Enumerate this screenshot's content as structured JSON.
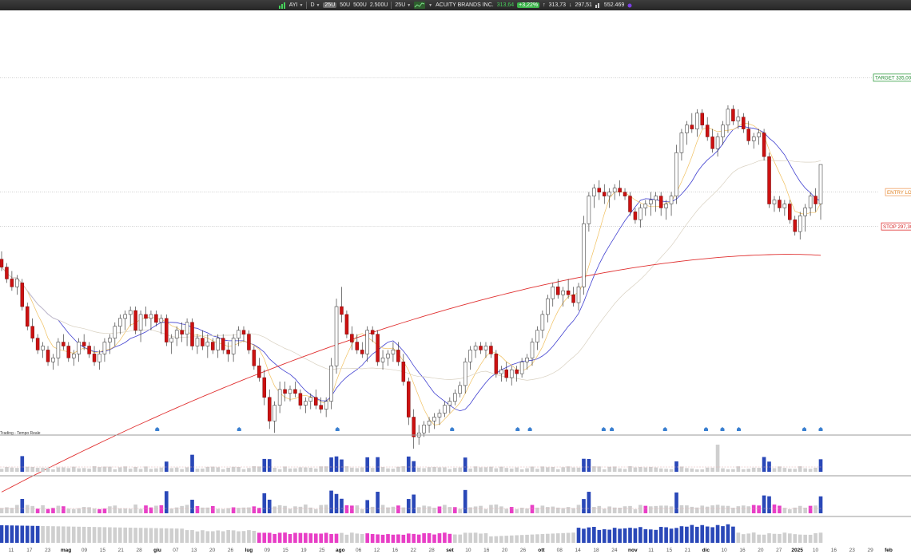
{
  "toolbar": {
    "ticker": "AYI",
    "interval": "D",
    "zoom_options": [
      "25U",
      "50U",
      "500U",
      "2.500U"
    ],
    "zoom_selected": "25U",
    "zoom_box": "25U",
    "company": "ACUITY BRANDS INC.",
    "last_price": "313,64",
    "change_pct": "+3,22%",
    "high": "313,73",
    "low": "297,51",
    "volume": "552.469",
    "icons": [
      "bars-icon",
      "chevron-down-icon",
      "sparkline-icon",
      "arrow-up-icon",
      "arrow-down-icon"
    ]
  },
  "chart_data": {
    "type": "candlestick",
    "price_range": [
      258,
      348
    ],
    "levels": [
      {
        "label": "TARGET 335,00",
        "value": 335.0,
        "color": "#1f8a2f",
        "border": "#2d9b3d"
      },
      {
        "label": "ENTRY LONG",
        "value": 306.0,
        "color": "#e08020",
        "border": "#f0a060"
      },
      {
        "label": "STOP 297,30",
        "value": 297.3,
        "color": "#d42020",
        "border": "#e03030"
      }
    ],
    "note": "Trading - Tempo Reale",
    "moving_averages": [
      {
        "name": "MA short",
        "color": "#4040d0"
      },
      {
        "name": "MA fast",
        "color": "#f0c060"
      },
      {
        "name": "MA medium",
        "color": "#d8d0c0"
      },
      {
        "name": "MA long",
        "color": "#e03030"
      }
    ],
    "colors": {
      "bull": "#ffffff",
      "bear": "#cc1111",
      "vol_blue": "#2a48b8",
      "vol_gray": "#cfcfcf",
      "vol_pink": "#e83ec6"
    },
    "x_ticks": [
      "11",
      "17",
      "23",
      "mag",
      "09",
      "15",
      "21",
      "28",
      "giu",
      "07",
      "13",
      "20",
      "26",
      "lug",
      "09",
      "15",
      "19",
      "25",
      "ago",
      "06",
      "12",
      "16",
      "22",
      "28",
      "set",
      "10",
      "16",
      "20",
      "26",
      "ott",
      "08",
      "14",
      "18",
      "24",
      "nov",
      "11",
      "15",
      "21",
      "dic",
      "10",
      "16",
      "20",
      "27",
      "2025",
      "10",
      "16",
      "23",
      "29",
      "feb"
    ],
    "bold_ticks": [
      "mag",
      "giu",
      "lug",
      "ago",
      "set",
      "ott",
      "nov",
      "dic",
      "2025",
      "feb"
    ],
    "candles_ohlc": [
      [
        289,
        291,
        286,
        287
      ],
      [
        287,
        288,
        283,
        284
      ],
      [
        284,
        286,
        281,
        282
      ],
      [
        282,
        285,
        280,
        284
      ],
      [
        283,
        284,
        276,
        277
      ],
      [
        277,
        278,
        271,
        272
      ],
      [
        272,
        274,
        268,
        269
      ],
      [
        269,
        270,
        265,
        266
      ],
      [
        266,
        268,
        264,
        267
      ],
      [
        266,
        267,
        262,
        263
      ],
      [
        263,
        265,
        261,
        264
      ],
      [
        264,
        269,
        262,
        268
      ],
      [
        268,
        270,
        266,
        267
      ],
      [
        267,
        268,
        263,
        264
      ],
      [
        264,
        266,
        262,
        265
      ],
      [
        265,
        269,
        263,
        268
      ],
      [
        268,
        270,
        266,
        267
      ],
      [
        267,
        268,
        264,
        265
      ],
      [
        265,
        267,
        262,
        263
      ],
      [
        263,
        266,
        261,
        265
      ],
      [
        265,
        269,
        263,
        268
      ],
      [
        268,
        270,
        265,
        269
      ],
      [
        269,
        273,
        267,
        272
      ],
      [
        272,
        275,
        270,
        274
      ],
      [
        274,
        276,
        271,
        275
      ],
      [
        275,
        277,
        272,
        276
      ],
      [
        276,
        277,
        270,
        271
      ],
      [
        271,
        276,
        268,
        275
      ],
      [
        275,
        277,
        272,
        274
      ],
      [
        274,
        276,
        271,
        275
      ],
      [
        275,
        276,
        272,
        273
      ],
      [
        273,
        275,
        270,
        274
      ],
      [
        274,
        275,
        267,
        268
      ],
      [
        268,
        270,
        265,
        269
      ],
      [
        269,
        272,
        267,
        271
      ],
      [
        271,
        273,
        268,
        270
      ],
      [
        270,
        274,
        267,
        273
      ],
      [
        273,
        274,
        266,
        267
      ],
      [
        267,
        270,
        265,
        269
      ],
      [
        269,
        271,
        266,
        267
      ],
      [
        267,
        270,
        264,
        268
      ],
      [
        268,
        269,
        265,
        266
      ],
      [
        266,
        270,
        264,
        269
      ],
      [
        269,
        270,
        265,
        266
      ],
      [
        266,
        268,
        263,
        265
      ],
      [
        265,
        270,
        263,
        269
      ],
      [
        269,
        272,
        267,
        271
      ],
      [
        271,
        272,
        268,
        270
      ],
      [
        270,
        271,
        265,
        266
      ],
      [
        266,
        267,
        261,
        262
      ],
      [
        262,
        264,
        258,
        259
      ],
      [
        259,
        261,
        252,
        254
      ],
      [
        254,
        256,
        246,
        248
      ],
      [
        248,
        253,
        245,
        252
      ],
      [
        252,
        258,
        250,
        256
      ],
      [
        256,
        258,
        253,
        255
      ],
      [
        255,
        257,
        253,
        256
      ],
      [
        256,
        258,
        254,
        255
      ],
      [
        255,
        256,
        251,
        252
      ],
      [
        252,
        254,
        250,
        253
      ],
      [
        253,
        255,
        251,
        254
      ],
      [
        254,
        256,
        251,
        252
      ],
      [
        252,
        254,
        250,
        251
      ],
      [
        251,
        254,
        249,
        253
      ],
      [
        253,
        264,
        251,
        262
      ],
      [
        262,
        279,
        260,
        277
      ],
      [
        277,
        282,
        273,
        275
      ],
      [
        275,
        276,
        269,
        270
      ],
      [
        270,
        272,
        266,
        268
      ],
      [
        268,
        270,
        265,
        266
      ],
      [
        266,
        268,
        264,
        265
      ],
      [
        265,
        272,
        263,
        271
      ],
      [
        271,
        272,
        268,
        270
      ],
      [
        270,
        271,
        262,
        263
      ],
      [
        263,
        266,
        261,
        264
      ],
      [
        264,
        266,
        262,
        265
      ],
      [
        265,
        268,
        263,
        266
      ],
      [
        266,
        268,
        262,
        263
      ],
      [
        263,
        265,
        257,
        258
      ],
      [
        258,
        259,
        247,
        249
      ],
      [
        249,
        251,
        241,
        244
      ],
      [
        244,
        247,
        242,
        245
      ],
      [
        245,
        248,
        244,
        247
      ],
      [
        247,
        249,
        245,
        248
      ],
      [
        248,
        250,
        246,
        249
      ],
      [
        249,
        251,
        247,
        250
      ],
      [
        250,
        253,
        249,
        252
      ],
      [
        252,
        254,
        250,
        253
      ],
      [
        253,
        256,
        252,
        255
      ],
      [
        255,
        258,
        254,
        257
      ],
      [
        257,
        264,
        255,
        263
      ],
      [
        263,
        267,
        261,
        266
      ],
      [
        266,
        268,
        264,
        267
      ],
      [
        267,
        268,
        265,
        266
      ],
      [
        266,
        268,
        264,
        267
      ],
      [
        267,
        268,
        264,
        265
      ],
      [
        265,
        266,
        259,
        260
      ],
      [
        260,
        262,
        258,
        261
      ],
      [
        261,
        263,
        258,
        259
      ],
      [
        259,
        262,
        257,
        261
      ],
      [
        261,
        262,
        258,
        260
      ],
      [
        260,
        264,
        259,
        263
      ],
      [
        263,
        265,
        261,
        264
      ],
      [
        264,
        269,
        262,
        268
      ],
      [
        268,
        272,
        266,
        271
      ],
      [
        271,
        276,
        269,
        275
      ],
      [
        275,
        280,
        273,
        279
      ],
      [
        279,
        283,
        277,
        282
      ],
      [
        282,
        284,
        279,
        280
      ],
      [
        280,
        282,
        277,
        281
      ],
      [
        281,
        284,
        279,
        280
      ],
      [
        280,
        282,
        277,
        278
      ],
      [
        278,
        283,
        276,
        282
      ],
      [
        282,
        300,
        280,
        298
      ],
      [
        298,
        306,
        296,
        305
      ],
      [
        305,
        308,
        302,
        307
      ],
      [
        307,
        309,
        304,
        306
      ],
      [
        306,
        308,
        303,
        305
      ],
      [
        305,
        307,
        302,
        306
      ],
      [
        306,
        308,
        304,
        307
      ],
      [
        307,
        309,
        305,
        306
      ],
      [
        306,
        307,
        304,
        305
      ],
      [
        305,
        306,
        300,
        301
      ],
      [
        301,
        302,
        298,
        299
      ],
      [
        299,
        303,
        297,
        302
      ],
      [
        302,
        304,
        300,
        303
      ],
      [
        303,
        306,
        300,
        304
      ],
      [
        304,
        306,
        301,
        305
      ],
      [
        305,
        306,
        300,
        302
      ],
      [
        302,
        304,
        299,
        303
      ],
      [
        303,
        306,
        300,
        305
      ],
      [
        305,
        318,
        303,
        316
      ],
      [
        316,
        322,
        314,
        321
      ],
      [
        321,
        324,
        318,
        323
      ],
      [
        323,
        326,
        321,
        322
      ],
      [
        322,
        327,
        320,
        326
      ],
      [
        326,
        327,
        322,
        323
      ],
      [
        323,
        325,
        319,
        320
      ],
      [
        320,
        322,
        316,
        317
      ],
      [
        317,
        321,
        315,
        320
      ],
      [
        320,
        324,
        318,
        323
      ],
      [
        323,
        328,
        321,
        327
      ],
      [
        327,
        328,
        323,
        324
      ],
      [
        324,
        327,
        322,
        325
      ],
      [
        325,
        326,
        321,
        322
      ],
      [
        322,
        324,
        318,
        319
      ],
      [
        319,
        321,
        317,
        320
      ],
      [
        320,
        322,
        318,
        321
      ],
      [
        321,
        322,
        314,
        315
      ],
      [
        315,
        316,
        302,
        303
      ],
      [
        303,
        305,
        301,
        304
      ],
      [
        304,
        305,
        301,
        302
      ],
      [
        302,
        304,
        300,
        303
      ],
      [
        303,
        304,
        298,
        299
      ],
      [
        299,
        300,
        295,
        296
      ],
      [
        296,
        301,
        294,
        300
      ],
      [
        300,
        303,
        296,
        302
      ],
      [
        302,
        306,
        300,
        305
      ],
      [
        305,
        307,
        301,
        303
      ],
      [
        303,
        313,
        299,
        313
      ]
    ]
  },
  "legend_ticks": []
}
